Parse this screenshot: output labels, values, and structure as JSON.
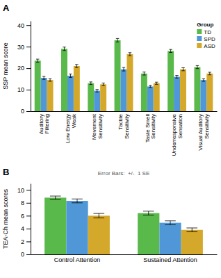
{
  "chart_data": [
    {
      "type": "bar",
      "title": "A",
      "y_label": "SSP mean score",
      "categories": [
        "Auditory\nFiltering",
        "Low Energy\nWeak",
        "Movement\nSensitivity",
        "Tactile\nSensitivity",
        "Taste Smell\nSensitivity",
        "Underresponsive\nSensation",
        "Visual Auditory\nSensitivity"
      ],
      "series": [
        {
          "name": "TD",
          "color": "#5ab94b",
          "values": [
            23.5,
            29.0,
            13.0,
            33.0,
            17.5,
            28.0,
            20.5
          ],
          "errors": [
            0.7,
            0.8,
            0.6,
            0.8,
            0.7,
            0.7,
            0.7
          ]
        },
        {
          "name": "SPD",
          "color": "#4f97d6",
          "values": [
            15.5,
            16.5,
            9.5,
            19.5,
            11.5,
            16.0,
            14.5
          ],
          "errors": [
            0.7,
            0.8,
            0.6,
            0.8,
            0.5,
            0.6,
            0.6
          ]
        },
        {
          "name": "ASD",
          "color": "#d4a82a",
          "values": [
            14.5,
            21.0,
            12.5,
            26.5,
            13.0,
            19.5,
            17.5
          ],
          "errors": [
            0.6,
            0.7,
            0.6,
            0.7,
            0.5,
            0.7,
            0.6
          ]
        }
      ],
      "ylim": [
        0,
        42
      ],
      "yticks": [
        0,
        10,
        20,
        30,
        40
      ],
      "grid": false,
      "legend": "upper right",
      "legend_title": "Group"
    },
    {
      "type": "bar",
      "title": "B",
      "y_label": "TEA-Ch mean scores",
      "annotations": [
        "Error Bars:  +/-  1 SE"
      ],
      "categories": [
        "Control Attention",
        "Sustained Attention"
      ],
      "series": [
        {
          "name": "TD",
          "color": "#5ab94b",
          "values": [
            8.8,
            6.4
          ],
          "errors": [
            0.25,
            0.3
          ]
        },
        {
          "name": "SPD",
          "color": "#4f97d6",
          "values": [
            8.3,
            4.9
          ],
          "errors": [
            0.3,
            0.3
          ]
        },
        {
          "name": "ASD",
          "color": "#d4a82a",
          "values": [
            6.0,
            3.8
          ],
          "errors": [
            0.35,
            0.3
          ]
        }
      ],
      "ylim": [
        0,
        11
      ],
      "yticks": [
        0,
        2,
        4,
        6,
        8,
        10
      ],
      "grid": false
    }
  ]
}
